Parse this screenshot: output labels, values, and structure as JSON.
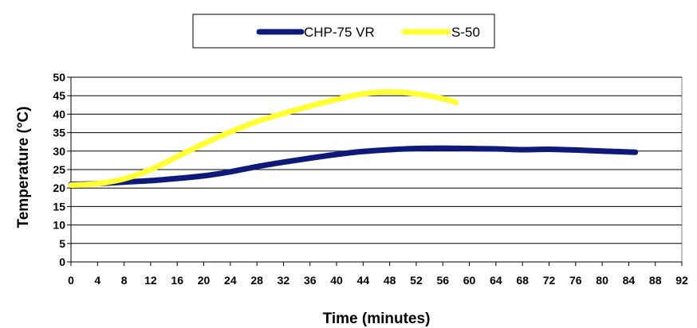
{
  "chart_data": {
    "type": "line",
    "title": "",
    "xlabel": "Time (minutes)",
    "ylabel": "Temperature (°C)",
    "xlim": [
      0,
      92
    ],
    "ylim": [
      0,
      50
    ],
    "x_ticks": [
      0,
      4,
      8,
      12,
      16,
      20,
      24,
      28,
      32,
      36,
      40,
      44,
      48,
      52,
      56,
      60,
      64,
      68,
      72,
      76,
      80,
      84,
      88,
      92
    ],
    "y_ticks": [
      0,
      5,
      10,
      15,
      20,
      25,
      30,
      35,
      40,
      45,
      50
    ],
    "grid": "horizontal",
    "legend_position": "top",
    "series": [
      {
        "name": "CHP-75 VR",
        "color": "#0d1a7a",
        "points": [
          [
            0,
            21
          ],
          [
            4,
            21.2
          ],
          [
            8,
            21.6
          ],
          [
            12,
            22
          ],
          [
            16,
            22.6
          ],
          [
            20,
            23.3
          ],
          [
            24,
            24.4
          ],
          [
            28,
            25.8
          ],
          [
            32,
            27
          ],
          [
            36,
            28.1
          ],
          [
            40,
            29.1
          ],
          [
            44,
            29.9
          ],
          [
            48,
            30.4
          ],
          [
            52,
            30.7
          ],
          [
            56,
            30.8
          ],
          [
            60,
            30.7
          ],
          [
            64,
            30.6
          ],
          [
            68,
            30.4
          ],
          [
            72,
            30.5
          ],
          [
            76,
            30.3
          ],
          [
            80,
            30
          ],
          [
            85,
            29.7
          ]
        ]
      },
      {
        "name": "S-50",
        "color": "#ffff33",
        "points": [
          [
            0,
            20.8
          ],
          [
            4,
            21.2
          ],
          [
            8,
            22.5
          ],
          [
            12,
            25
          ],
          [
            16,
            28.5
          ],
          [
            20,
            32
          ],
          [
            24,
            35.2
          ],
          [
            28,
            38
          ],
          [
            32,
            40.2
          ],
          [
            36,
            42.2
          ],
          [
            40,
            44
          ],
          [
            44,
            45.5
          ],
          [
            48,
            46
          ],
          [
            52,
            45.5
          ],
          [
            56,
            44.2
          ],
          [
            58,
            43.2
          ]
        ]
      }
    ]
  }
}
